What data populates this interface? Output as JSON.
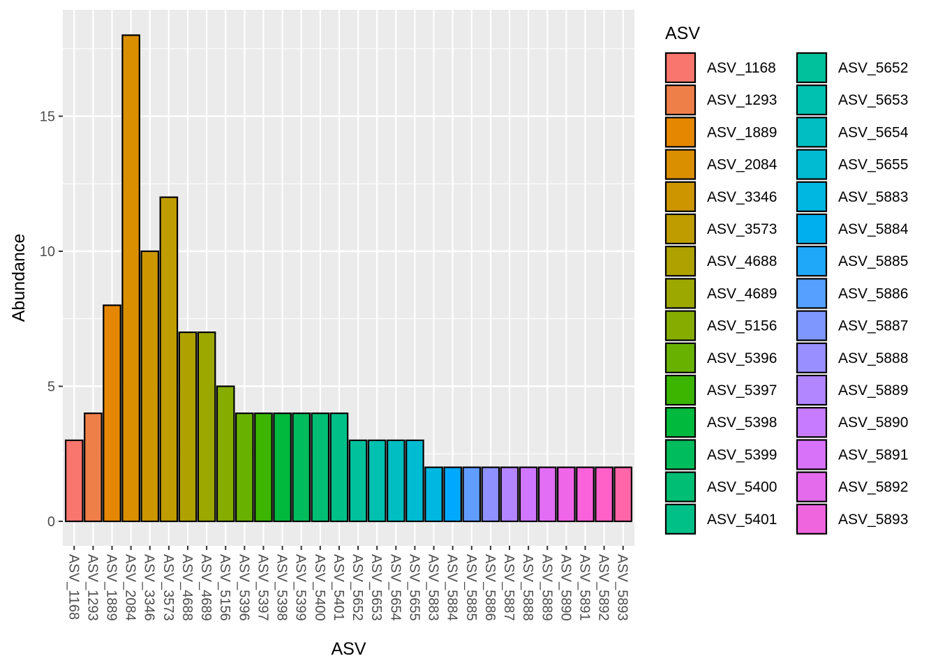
{
  "chart_data": {
    "type": "bar",
    "xlabel": "ASV",
    "ylabel": "Abundance",
    "ylim": [
      -0.7,
      18.9
    ],
    "yticks": [
      0,
      5,
      10,
      15
    ],
    "grid": true,
    "legend": {
      "title": "ASV",
      "placement": "right",
      "columns": 2
    },
    "categories": [
      "ASV_1168",
      "ASV_1293",
      "ASV_1889",
      "ASV_2084",
      "ASV_3346",
      "ASV_3573",
      "ASV_4688",
      "ASV_4689",
      "ASV_5156",
      "ASV_5396",
      "ASV_5397",
      "ASV_5398",
      "ASV_5399",
      "ASV_5400",
      "ASV_5401",
      "ASV_5652",
      "ASV_5653",
      "ASV_5654",
      "ASV_5655",
      "ASV_5883",
      "ASV_5884",
      "ASV_5885",
      "ASV_5886",
      "ASV_5887",
      "ASV_5888",
      "ASV_5889",
      "ASV_5890",
      "ASV_5891",
      "ASV_5892",
      "ASV_5893"
    ],
    "values": [
      3,
      4,
      8,
      18,
      10,
      12,
      7,
      7,
      5,
      4,
      4,
      4,
      4,
      4,
      4,
      3,
      3,
      3,
      3,
      2,
      2,
      2,
      2,
      2,
      2,
      2,
      2,
      2,
      2,
      2
    ],
    "colors": [
      "#F8766D",
      "#EF7F49",
      "#E58700",
      "#DA8F00",
      "#CD9600",
      "#BF9C00",
      "#AFA200",
      "#9CA700",
      "#86AC00",
      "#69B100",
      "#3BB500",
      "#00B93D",
      "#00BC5C",
      "#00BE73",
      "#00C088",
      "#00C19C",
      "#00C0AF",
      "#00BEC1",
      "#00BBD2",
      "#00B7E1",
      "#00B0EE",
      "#1FA8F9",
      "#56A0FF",
      "#7D97FF",
      "#9A8FFF",
      "#B286FF",
      "#C77CFF",
      "#D872F8",
      "#E46BEC",
      "#EE65DE"
    ],
    "legend_colors": [
      "#F8766D",
      "#EF7F49",
      "#E58700",
      "#DA8F00",
      "#CD9600",
      "#BF9C00",
      "#AFA200",
      "#9CA700",
      "#86AC00",
      "#69B100",
      "#3BB500",
      "#00B93D",
      "#00BC5C",
      "#00BE73",
      "#00C088",
      "#00C19C",
      "#00C0AF",
      "#00BEC1",
      "#00BBD2",
      "#00B7E1",
      "#00B0EE",
      "#1FA8F9",
      "#56A0FF",
      "#7D97FF",
      "#9A8FFF",
      "#B286FF",
      "#C77CFF",
      "#D872F8",
      "#E46BEC",
      "#EE65DE"
    ],
    "bar_colors_plot": [
      "#F8766D",
      "#EF7F49",
      "#E58700",
      "#DA8F00",
      "#CD9600",
      "#BF9C00",
      "#AFA200",
      "#9CA700",
      "#86AC00",
      "#69B100",
      "#3BB500",
      "#00B93D",
      "#00BC5C",
      "#00BE73",
      "#00C088",
      "#00C19C",
      "#00C0AF",
      "#00BEC1",
      "#00BBD2",
      "#00B7E1",
      "#00A9FF",
      "#619CFF",
      "#8F91FF",
      "#B385FF",
      "#CF78FF",
      "#E36EF6",
      "#F066E9",
      "#FA62DB",
      "#FF61C9",
      "#FF66A8"
    ],
    "panel_background": "#EBEBEB",
    "grid_color": "#FFFFFF",
    "bar_outline": "#000000"
  }
}
